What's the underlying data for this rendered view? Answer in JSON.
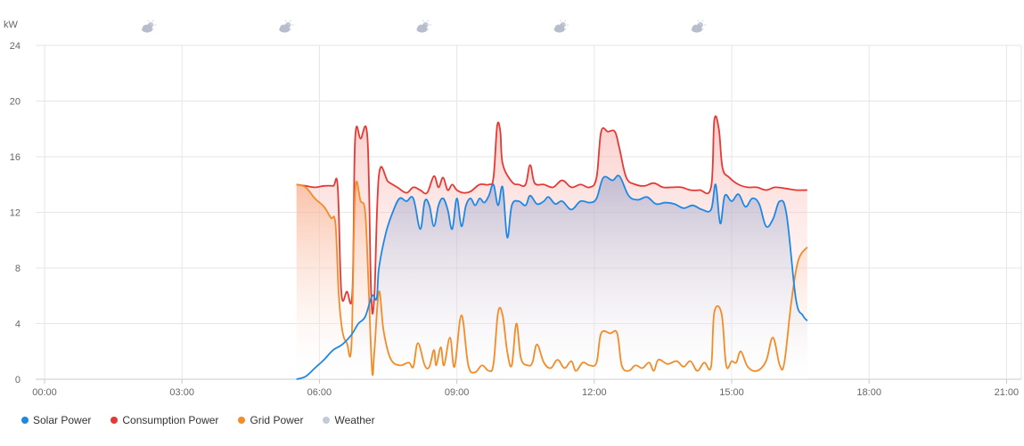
{
  "chart_data": {
    "type": "area",
    "ylabel": "kW",
    "ylim": [
      0,
      24
    ],
    "yticks": [
      "0",
      "4",
      "8",
      "12",
      "16",
      "20",
      "24"
    ],
    "xlim": [
      0,
      22
    ],
    "xticks": [
      "00:00",
      "03:00",
      "06:00",
      "09:00",
      "12:00",
      "15:00",
      "18:00",
      "21:00"
    ],
    "grid": true,
    "legend_position": "bottom-left",
    "weather_icons": [
      {
        "time": 2.2,
        "icon": "partly-cloudy-icon"
      },
      {
        "time": 5.2,
        "icon": "partly-cloudy-icon"
      },
      {
        "time": 8.2,
        "icon": "partly-cloudy-icon"
      },
      {
        "time": 11.2,
        "icon": "partly-cloudy-icon"
      },
      {
        "time": 14.2,
        "icon": "partly-cloudy-icon"
      }
    ],
    "series": [
      {
        "name": "Solar Power",
        "color": "#1e88e5",
        "points": [
          [
            5.5,
            0
          ],
          [
            5.7,
            0.2
          ],
          [
            5.9,
            0.8
          ],
          [
            6.1,
            1.4
          ],
          [
            6.3,
            2.1
          ],
          [
            6.5,
            2.5
          ],
          [
            6.7,
            3.2
          ],
          [
            6.85,
            4.0
          ],
          [
            7.0,
            4.5
          ],
          [
            7.15,
            6.0
          ],
          [
            7.25,
            5.8
          ],
          [
            7.3,
            8.0
          ],
          [
            7.45,
            10.5
          ],
          [
            7.6,
            12.0
          ],
          [
            7.75,
            13.0
          ],
          [
            7.9,
            12.8
          ],
          [
            8.05,
            13.0
          ],
          [
            8.2,
            10.8
          ],
          [
            8.3,
            12.8
          ],
          [
            8.4,
            12.5
          ],
          [
            8.5,
            11.0
          ],
          [
            8.6,
            12.5
          ],
          [
            8.7,
            13.0
          ],
          [
            8.8,
            12.2
          ],
          [
            8.9,
            10.8
          ],
          [
            9.0,
            13.0
          ],
          [
            9.1,
            11.0
          ],
          [
            9.2,
            12.5
          ],
          [
            9.3,
            13.0
          ],
          [
            9.4,
            12.5
          ],
          [
            9.5,
            13.0
          ],
          [
            9.6,
            12.7
          ],
          [
            9.7,
            13.2
          ],
          [
            9.8,
            14.0
          ],
          [
            9.9,
            12.5
          ],
          [
            10.0,
            13.8
          ],
          [
            10.1,
            10.2
          ],
          [
            10.2,
            12.5
          ],
          [
            10.35,
            12.8
          ],
          [
            10.5,
            12.5
          ],
          [
            10.6,
            13.2
          ],
          [
            10.75,
            12.6
          ],
          [
            10.9,
            12.8
          ],
          [
            11.0,
            13.1
          ],
          [
            11.15,
            12.6
          ],
          [
            11.3,
            12.8
          ],
          [
            11.5,
            12.2
          ],
          [
            11.7,
            12.8
          ],
          [
            11.9,
            12.7
          ],
          [
            12.05,
            13.0
          ],
          [
            12.2,
            14.5
          ],
          [
            12.4,
            14.3
          ],
          [
            12.55,
            14.6
          ],
          [
            12.75,
            13.2
          ],
          [
            12.95,
            12.9
          ],
          [
            13.15,
            13.1
          ],
          [
            13.35,
            12.6
          ],
          [
            13.55,
            12.7
          ],
          [
            13.75,
            12.6
          ],
          [
            13.95,
            12.3
          ],
          [
            14.15,
            12.5
          ],
          [
            14.35,
            12.2
          ],
          [
            14.55,
            12.2
          ],
          [
            14.65,
            14.0
          ],
          [
            14.75,
            11.2
          ],
          [
            14.85,
            13.2
          ],
          [
            15.0,
            12.8
          ],
          [
            15.15,
            13.3
          ],
          [
            15.3,
            12.4
          ],
          [
            15.45,
            13.0
          ],
          [
            15.6,
            12.6
          ],
          [
            15.75,
            11.0
          ],
          [
            15.9,
            11.5
          ],
          [
            16.05,
            12.8
          ],
          [
            16.2,
            11.8
          ],
          [
            16.4,
            5.8
          ],
          [
            16.55,
            4.6
          ],
          [
            16.65,
            4.2
          ]
        ]
      },
      {
        "name": "Consumption Power",
        "color": "#e53935",
        "points": [
          [
            5.5,
            14.0
          ],
          [
            5.7,
            13.9
          ],
          [
            5.9,
            13.8
          ],
          [
            6.1,
            13.9
          ],
          [
            6.3,
            13.9
          ],
          [
            6.4,
            13.8
          ],
          [
            6.48,
            6.2
          ],
          [
            6.6,
            6.3
          ],
          [
            6.72,
            6.3
          ],
          [
            6.78,
            17.3
          ],
          [
            6.9,
            17.3
          ],
          [
            7.05,
            17.3
          ],
          [
            7.13,
            6.1
          ],
          [
            7.2,
            6.0
          ],
          [
            7.3,
            14.7
          ],
          [
            7.5,
            14.2
          ],
          [
            7.7,
            13.8
          ],
          [
            7.9,
            13.4
          ],
          [
            8.05,
            13.8
          ],
          [
            8.2,
            13.6
          ],
          [
            8.35,
            13.4
          ],
          [
            8.5,
            14.6
          ],
          [
            8.6,
            13.8
          ],
          [
            8.7,
            14.5
          ],
          [
            8.8,
            13.6
          ],
          [
            8.9,
            14.0
          ],
          [
            9.0,
            13.6
          ],
          [
            9.15,
            13.4
          ],
          [
            9.3,
            13.5
          ],
          [
            9.5,
            14.0
          ],
          [
            9.7,
            14.0
          ],
          [
            9.8,
            14.5
          ],
          [
            9.88,
            18.2
          ],
          [
            9.95,
            17.8
          ],
          [
            10.0,
            15.5
          ],
          [
            10.2,
            14.2
          ],
          [
            10.35,
            14.0
          ],
          [
            10.5,
            14.0
          ],
          [
            10.6,
            15.4
          ],
          [
            10.7,
            14.1
          ],
          [
            10.9,
            14.0
          ],
          [
            11.1,
            13.8
          ],
          [
            11.3,
            14.3
          ],
          [
            11.5,
            13.8
          ],
          [
            11.7,
            14.0
          ],
          [
            11.9,
            13.8
          ],
          [
            12.05,
            14.5
          ],
          [
            12.15,
            17.8
          ],
          [
            12.3,
            17.8
          ],
          [
            12.45,
            17.8
          ],
          [
            12.55,
            16.6
          ],
          [
            12.7,
            14.5
          ],
          [
            12.9,
            14.0
          ],
          [
            13.1,
            13.9
          ],
          [
            13.3,
            14.1
          ],
          [
            13.5,
            13.8
          ],
          [
            13.7,
            13.8
          ],
          [
            13.9,
            13.8
          ],
          [
            14.1,
            13.6
          ],
          [
            14.3,
            13.6
          ],
          [
            14.55,
            13.8
          ],
          [
            14.62,
            18.6
          ],
          [
            14.72,
            18.0
          ],
          [
            14.8,
            15.2
          ],
          [
            14.95,
            14.5
          ],
          [
            15.15,
            14.0
          ],
          [
            15.35,
            13.8
          ],
          [
            15.55,
            13.8
          ],
          [
            15.75,
            13.6
          ],
          [
            15.95,
            13.8
          ],
          [
            16.2,
            13.7
          ],
          [
            16.4,
            13.6
          ],
          [
            16.65,
            13.6
          ]
        ]
      },
      {
        "name": "Grid Power",
        "color": "#f28c28",
        "points": [
          [
            5.5,
            14.0
          ],
          [
            5.7,
            13.8
          ],
          [
            5.9,
            13.0
          ],
          [
            6.1,
            12.4
          ],
          [
            6.25,
            11.6
          ],
          [
            6.35,
            11.2
          ],
          [
            6.42,
            6.2
          ],
          [
            6.5,
            3.5
          ],
          [
            6.6,
            2.6
          ],
          [
            6.7,
            2.5
          ],
          [
            6.78,
            13.5
          ],
          [
            6.9,
            12.8
          ],
          [
            7.0,
            12.0
          ],
          [
            7.07,
            7.0
          ],
          [
            7.15,
            0.6
          ],
          [
            7.2,
            2.0
          ],
          [
            7.3,
            6.3
          ],
          [
            7.4,
            3.5
          ],
          [
            7.55,
            1.5
          ],
          [
            7.75,
            1.0
          ],
          [
            7.95,
            1.2
          ],
          [
            8.05,
            0.9
          ],
          [
            8.15,
            2.6
          ],
          [
            8.3,
            1.0
          ],
          [
            8.4,
            0.9
          ],
          [
            8.5,
            2.1
          ],
          [
            8.55,
            1.0
          ],
          [
            8.65,
            2.3
          ],
          [
            8.72,
            1.0
          ],
          [
            8.85,
            3.0
          ],
          [
            8.95,
            0.9
          ],
          [
            9.1,
            4.6
          ],
          [
            9.25,
            1.0
          ],
          [
            9.4,
            0.5
          ],
          [
            9.55,
            1.0
          ],
          [
            9.7,
            0.6
          ],
          [
            9.8,
            1.1
          ],
          [
            9.9,
            4.8
          ],
          [
            10.0,
            4.6
          ],
          [
            10.1,
            2.0
          ],
          [
            10.2,
            1.0
          ],
          [
            10.3,
            4.0
          ],
          [
            10.4,
            1.5
          ],
          [
            10.55,
            1.0
          ],
          [
            10.65,
            1.2
          ],
          [
            10.75,
            2.5
          ],
          [
            10.9,
            1.2
          ],
          [
            11.05,
            0.8
          ],
          [
            11.2,
            1.4
          ],
          [
            11.35,
            0.8
          ],
          [
            11.5,
            1.3
          ],
          [
            11.6,
            0.6
          ],
          [
            11.75,
            1.2
          ],
          [
            11.9,
            1.0
          ],
          [
            12.05,
            1.2
          ],
          [
            12.15,
            3.3
          ],
          [
            12.35,
            3.3
          ],
          [
            12.5,
            3.3
          ],
          [
            12.6,
            1.0
          ],
          [
            12.75,
            0.6
          ],
          [
            12.9,
            1.0
          ],
          [
            13.05,
            0.8
          ],
          [
            13.2,
            1.2
          ],
          [
            13.3,
            0.6
          ],
          [
            13.4,
            1.4
          ],
          [
            13.6,
            1.1
          ],
          [
            13.8,
            1.3
          ],
          [
            13.95,
            0.9
          ],
          [
            14.1,
            1.3
          ],
          [
            14.25,
            0.6
          ],
          [
            14.4,
            1.2
          ],
          [
            14.55,
            0.9
          ],
          [
            14.62,
            4.8
          ],
          [
            14.78,
            4.7
          ],
          [
            14.88,
            1.0
          ],
          [
            15.0,
            1.3
          ],
          [
            15.1,
            1.2
          ],
          [
            15.2,
            2.0
          ],
          [
            15.35,
            0.9
          ],
          [
            15.55,
            0.6
          ],
          [
            15.75,
            1.3
          ],
          [
            15.9,
            3.0
          ],
          [
            16.05,
            1.0
          ],
          [
            16.15,
            1.2
          ],
          [
            16.3,
            5.5
          ],
          [
            16.45,
            8.5
          ],
          [
            16.65,
            9.5
          ]
        ]
      },
      {
        "name": "Weather",
        "color": "#c5cadb",
        "points": []
      }
    ]
  }
}
